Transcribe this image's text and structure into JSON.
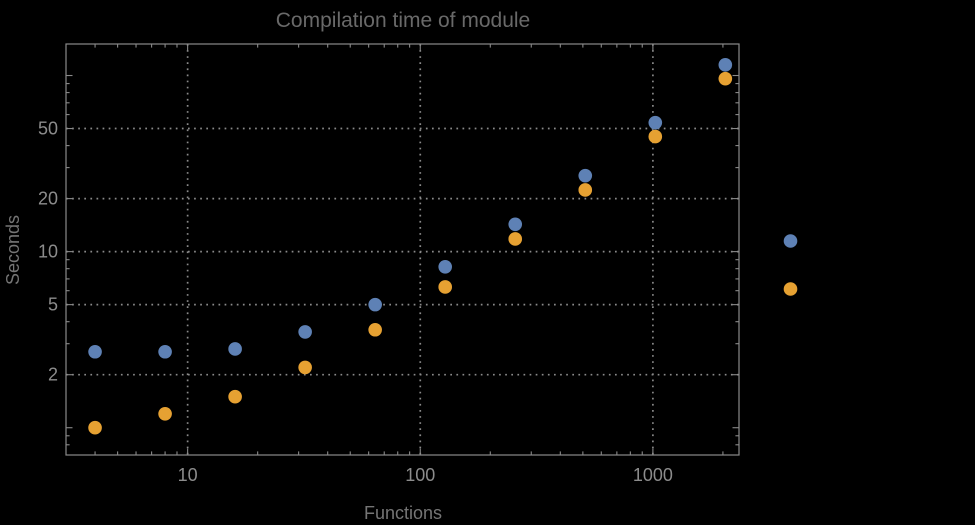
{
  "window": {
    "background": "#000000"
  },
  "colors": {
    "background": "#000000",
    "frame": "#8a8a8a",
    "gridline": "#8a8a8a",
    "tick": "#8a8a8a",
    "tick_label": "#8c8c8c",
    "axis_label": "#757575",
    "title": "#696969",
    "series_blue": "#5e81b5",
    "series_orange": "#e6a132"
  },
  "chart_data": {
    "type": "scatter",
    "title": "Compilation time of module",
    "xlabel": "Functions",
    "ylabel": "Seconds",
    "x_scale": "log",
    "y_scale": "log",
    "xlim": [
      3,
      2345
    ],
    "ylim": [
      0.7,
      151
    ],
    "grid": "dotted at labeled major ticks",
    "x": [
      4,
      8,
      16,
      32,
      64,
      128,
      256,
      512,
      1024,
      2048
    ],
    "series": [
      {
        "color": "#5e81b5",
        "values": [
          2.7,
          2.7,
          2.8,
          3.5,
          5.0,
          8.2,
          14.3,
          27,
          54,
          115
        ]
      },
      {
        "color": "#e6a132",
        "values": [
          1.0,
          1.2,
          1.5,
          2.2,
          3.6,
          6.3,
          11.8,
          22.4,
          45,
          96
        ]
      }
    ],
    "x_ticks": [
      {
        "value": 10,
        "label": "10"
      },
      {
        "value": 100,
        "label": "100"
      },
      {
        "value": 1000,
        "label": "1000"
      }
    ],
    "x_minor_ticks": [
      4,
      5,
      6,
      7,
      8,
      9,
      20,
      30,
      40,
      50,
      60,
      70,
      80,
      90,
      200,
      300,
      400,
      500,
      600,
      700,
      800,
      900,
      2000
    ],
    "y_ticks": [
      {
        "value": 50,
        "label": "50"
      },
      {
        "value": 20,
        "label": "20"
      },
      {
        "value": 10,
        "label": "10"
      },
      {
        "value": 5,
        "label": "5"
      },
      {
        "value": 2,
        "label": "2"
      }
    ],
    "y_unlabeled_major_ticks": [
      1,
      100
    ],
    "y_minor_ticks": [
      0.8,
      0.9,
      3,
      4,
      6,
      7,
      8,
      9,
      30,
      40,
      60,
      70,
      80,
      90
    ],
    "legend": {
      "position": "outside-right",
      "labels_visible": false,
      "markers": [
        {
          "color": "#5e81b5"
        },
        {
          "color": "#e6a132"
        }
      ]
    }
  }
}
